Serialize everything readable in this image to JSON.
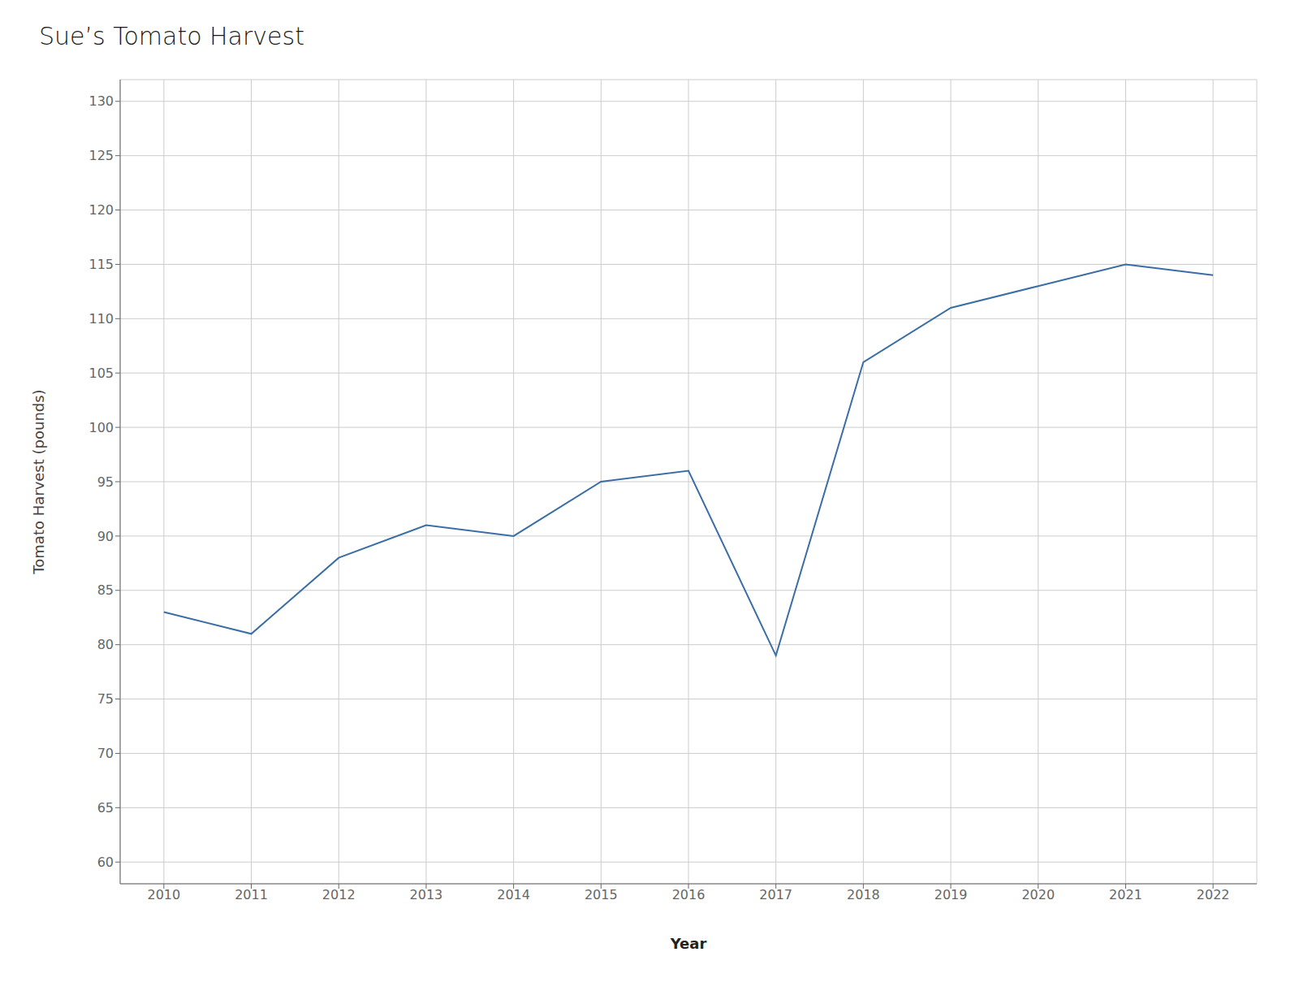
{
  "chart_data": {
    "type": "line",
    "title": "Sue’s Tomato Harvest",
    "xlabel": "Year",
    "ylabel": "Tomato Harvest (pounds)",
    "x": [
      2010,
      2011,
      2012,
      2013,
      2014,
      2015,
      2016,
      2017,
      2018,
      2019,
      2020,
      2021,
      2022
    ],
    "values": [
      83,
      81,
      88,
      91,
      90,
      95,
      96,
      79,
      106,
      111,
      113,
      115,
      114
    ],
    "color": "#3a6ea5",
    "xlim": [
      2009.5,
      2022.5
    ],
    "xticks": [
      2010,
      2011,
      2012,
      2013,
      2014,
      2015,
      2016,
      2017,
      2018,
      2019,
      2020,
      2021,
      2022
    ],
    "ylim": [
      58,
      132
    ],
    "yticks": [
      60,
      65,
      70,
      75,
      80,
      85,
      90,
      95,
      100,
      105,
      110,
      115,
      120,
      125,
      130
    ],
    "grid": true
  }
}
